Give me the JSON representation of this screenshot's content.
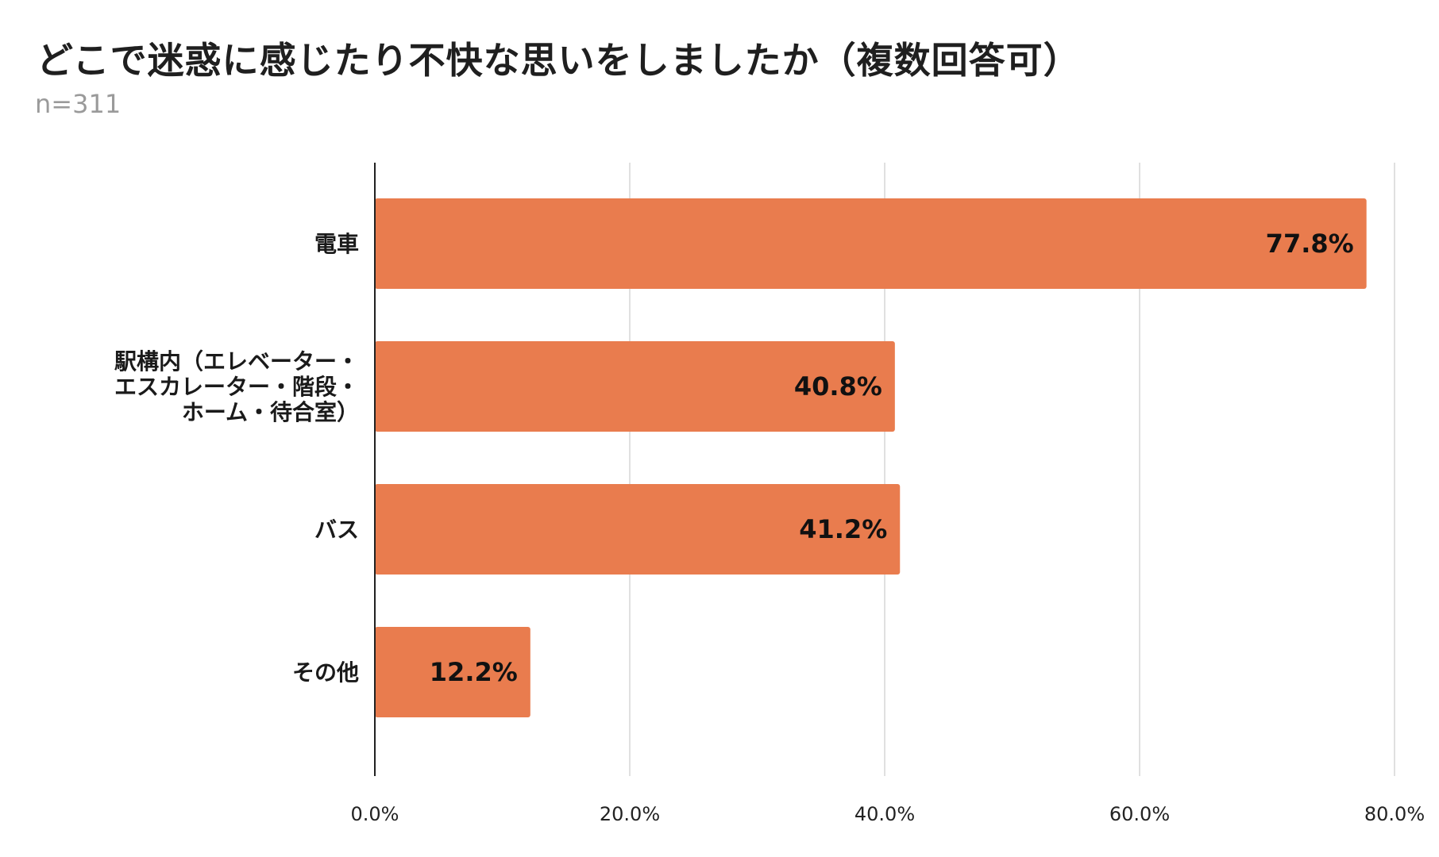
{
  "chart_data": {
    "type": "bar",
    "orientation": "horizontal",
    "title": "どこで迷惑に感じたり不快な思いをしましたか（複数回答可）",
    "subtitle": "n=311",
    "categories": [
      [
        "電車"
      ],
      [
        "駅構内（エレベーター・",
        "エスカレーター・階段・",
        "ホーム・待合室）"
      ],
      [
        "バス"
      ],
      [
        "その他"
      ]
    ],
    "values": [
      77.8,
      40.8,
      41.2,
      12.2
    ],
    "data_labels": [
      "77.8%",
      "40.8%",
      "41.2%",
      "12.2%"
    ],
    "xlim": [
      0,
      80
    ],
    "x_ticks": [
      0,
      20,
      40,
      60,
      80
    ],
    "x_tick_labels": [
      "0.0%",
      "20.0%",
      "40.0%",
      "60.0%",
      "80.0%"
    ],
    "grid": true,
    "legend": "none",
    "colors": {
      "bar": "#E97C4E",
      "grid": "#d6d6d6",
      "axis": "#222222"
    }
  }
}
